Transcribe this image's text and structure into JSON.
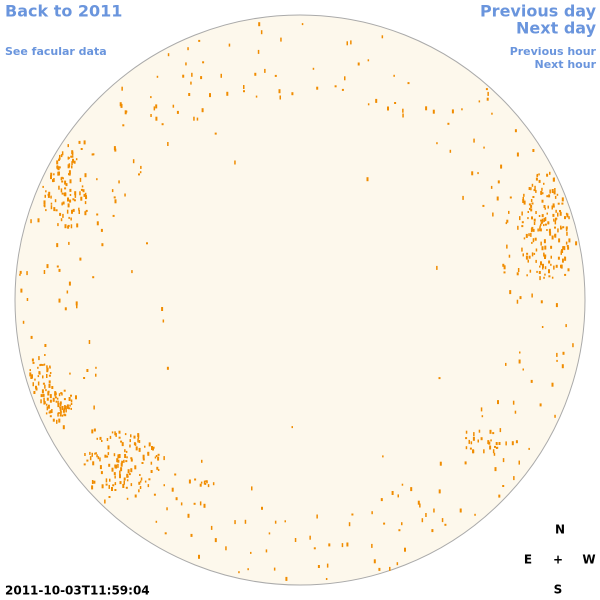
{
  "nav_left": {
    "back": "Back to 2011",
    "facular": "See facular data"
  },
  "nav_right": {
    "previous_day": "Previous day",
    "next_day": "Next day",
    "previous_hour": "Previous hour",
    "next_hour": "Next hour"
  },
  "timestamp": "2011-10-03T11:59:04",
  "compass": {
    "north": "N",
    "east": "E",
    "center": "+",
    "west": "W",
    "south": "S"
  }
}
